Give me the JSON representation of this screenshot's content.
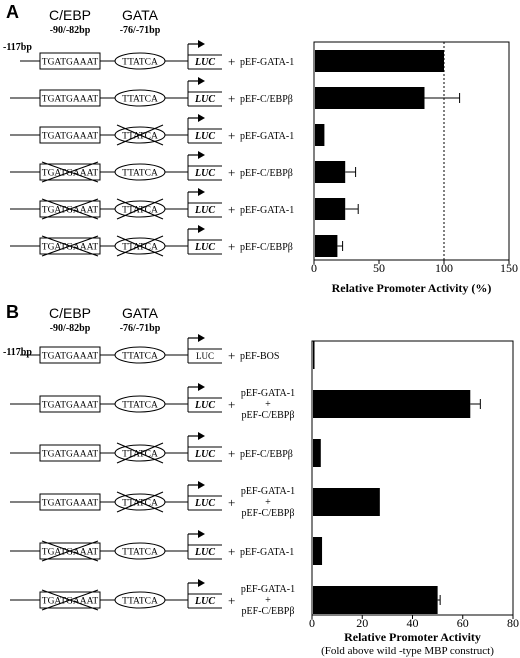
{
  "panels": [
    {
      "label": "A",
      "header": {
        "cebp_label": "C/EBP",
        "cebp_pos": "-90/-82bp",
        "gata_label": "GATA",
        "gata_pos": "-76/-71bp",
        "start_pos": "-117bp"
      },
      "constructs": [
        {
          "cebp_seq": "TGATGAAAT",
          "gata_seq": "TTATCA",
          "cebp_mutated": false,
          "gata_mutated": false,
          "reporter": "LUC",
          "plasmid": [
            "pEF-GATA-1"
          ]
        },
        {
          "cebp_seq": "TGATGAAAT",
          "gata_seq": "TTATCA",
          "cebp_mutated": false,
          "gata_mutated": false,
          "reporter": "LUC",
          "plasmid": [
            "pEF-C/EBPβ"
          ]
        },
        {
          "cebp_seq": "TGATGAAAT",
          "gata_seq": "TTATCA",
          "cebp_mutated": false,
          "gata_mutated": true,
          "reporter": "LUC",
          "plasmid": [
            "pEF-GATA-1"
          ]
        },
        {
          "cebp_seq": "TGATGAAAT",
          "gata_seq": "TTATCA",
          "cebp_mutated": true,
          "gata_mutated": false,
          "reporter": "LUC",
          "plasmid": [
            "pEF-C/EBPβ"
          ]
        },
        {
          "cebp_seq": "TGATGAAAT",
          "gata_seq": "TTATCA",
          "cebp_mutated": true,
          "gata_mutated": true,
          "reporter": "LUC",
          "plasmid": [
            "pEF-GATA-1"
          ]
        },
        {
          "cebp_seq": "TGATGAAAT",
          "gata_seq": "TTATCA",
          "cebp_mutated": true,
          "gata_mutated": true,
          "reporter": "LUC",
          "plasmid": [
            "pEF-C/EBPβ"
          ]
        }
      ]
    },
    {
      "label": "B",
      "header": {
        "cebp_label": "C/EBP",
        "cebp_pos": "-90/-82bp",
        "gata_label": "GATA",
        "gata_pos": "-76/-71bp",
        "start_pos": "-117bp"
      },
      "constructs": [
        {
          "cebp_seq": "TGATGAAAT",
          "gata_seq": "TTATCA",
          "cebp_mutated": false,
          "gata_mutated": false,
          "reporter": "LUC",
          "plasmid": [
            "pEF-BOS"
          ]
        },
        {
          "cebp_seq": "TGATGAAAT",
          "gata_seq": "TTATCA",
          "cebp_mutated": false,
          "gata_mutated": false,
          "reporter": "LUC",
          "plasmid": [
            "pEF-GATA-1",
            "+",
            "pEF-C/EBPβ"
          ]
        },
        {
          "cebp_seq": "TGATGAAAT",
          "gata_seq": "TTATCA",
          "cebp_mutated": false,
          "gata_mutated": true,
          "reporter": "LUC",
          "plasmid": [
            "pEF-C/EBPβ"
          ]
        },
        {
          "cebp_seq": "TGATGAAAT",
          "gata_seq": "TTATCA",
          "cebp_mutated": false,
          "gata_mutated": true,
          "reporter": "LUC",
          "plasmid": [
            "pEF-GATA-1",
            "+",
            "pEF-C/EBPβ"
          ]
        },
        {
          "cebp_seq": "TGATGAAAT",
          "gata_seq": "TTATCA",
          "cebp_mutated": true,
          "gata_mutated": false,
          "reporter": "LUC",
          "plasmid": [
            "pEF-GATA-1"
          ]
        },
        {
          "cebp_seq": "TGATGAAAT",
          "gata_seq": "TTATCA",
          "cebp_mutated": true,
          "gata_mutated": false,
          "reporter": "LUC",
          "plasmid": [
            "pEF-GATA-1",
            "+",
            "pEF-C/EBPβ"
          ]
        }
      ]
    }
  ],
  "chart_data": [
    {
      "type": "bar",
      "orientation": "horizontal",
      "categories": [
        "pEF-GATA-1",
        "pEF-C/EBPβ",
        "pEF-GATA-1",
        "pEF-C/EBPβ",
        "pEF-GATA-1",
        "pEF-C/EBPβ"
      ],
      "values": [
        100,
        85,
        8,
        24,
        24,
        18
      ],
      "errors": [
        0,
        27,
        0,
        8,
        10,
        4
      ],
      "xlabel": "Relative Promoter Activity (%)",
      "xlim": [
        0,
        150
      ],
      "xticks": [
        0,
        50,
        100,
        150
      ],
      "reference_line": 100,
      "color": "#000000"
    },
    {
      "type": "bar",
      "orientation": "horizontal",
      "categories": [
        "pEF-BOS",
        "pEF-GATA-1 + pEF-C/EBPβ",
        "pEF-C/EBPβ",
        "pEF-GATA-1 + pEF-C/EBPβ",
        "pEF-GATA-1",
        "pEF-GATA-1 + pEF-C/EBPβ"
      ],
      "values": [
        1,
        63,
        3.5,
        27,
        4,
        50
      ],
      "errors": [
        0,
        4,
        0,
        0,
        0,
        1
      ],
      "xlabel": "Relative Promoter Activity",
      "xlabel_sub": "(Fold above wild -type MBP construct)",
      "xlim": [
        0,
        80
      ],
      "xticks": [
        0,
        20,
        40,
        60,
        80
      ],
      "color": "#000000"
    }
  ]
}
